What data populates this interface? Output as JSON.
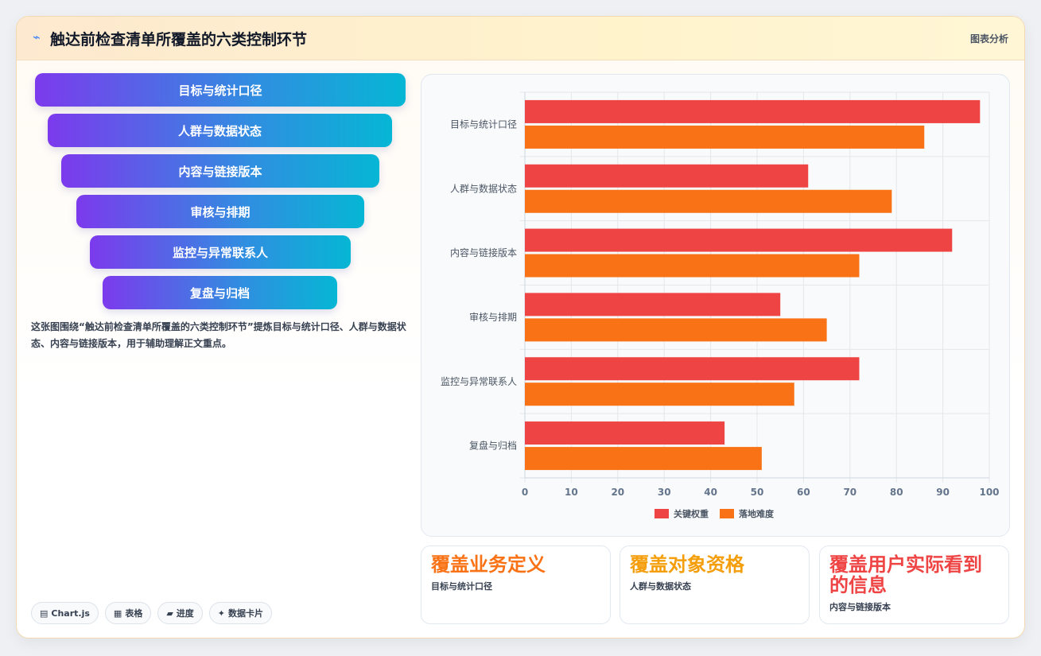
{
  "header": {
    "icon": "pulse-icon",
    "title": "触达前检查清单所覆盖的六类控制环节",
    "tag": "图表分析"
  },
  "funnel": [
    "目标与统计口径",
    "人群与数据状态",
    "内容与链接版本",
    "审核与排期",
    "监控与异常联系人",
    "复盘与归档"
  ],
  "description": "这张图围绕“触达前检查清单所覆盖的六类控制环节”提炼目标与统计口径、人群与数据状态、内容与链接版本，用于辅助理解正文重点。",
  "pills": [
    {
      "icon": "chart-icon",
      "label": "Chart.js"
    },
    {
      "icon": "table-icon",
      "label": "表格"
    },
    {
      "icon": "progress-icon",
      "label": "进度"
    },
    {
      "icon": "sparkle-icon",
      "label": "数据卡片"
    }
  ],
  "chart_data": {
    "type": "bar",
    "orientation": "horizontal",
    "categories": [
      "目标与统计口径",
      "人群与数据状态",
      "内容与链接版本",
      "审核与排期",
      "监控与异常联系人",
      "复盘与归档"
    ],
    "series": [
      {
        "name": "关键权重",
        "color": "#ef4444",
        "values": [
          98,
          61,
          92,
          55,
          72,
          43
        ]
      },
      {
        "name": "落地难度",
        "color": "#f97316",
        "values": [
          86,
          79,
          72,
          65,
          58,
          51
        ]
      }
    ],
    "xlim": [
      0,
      100
    ],
    "xticks": [
      0,
      10,
      20,
      30,
      40,
      50,
      60,
      70,
      80,
      90,
      100
    ],
    "grid": true,
    "legend": "bottom"
  },
  "stats": [
    {
      "big": "覆盖业务定义",
      "small": "目标与统计口径",
      "color": "#f97316"
    },
    {
      "big": "覆盖对象资格",
      "small": "人群与数据状态",
      "color": "#f59e0b"
    },
    {
      "big": "覆盖用户实际看到的信息",
      "small": "内容与链接版本",
      "color": "#ef4444"
    }
  ]
}
